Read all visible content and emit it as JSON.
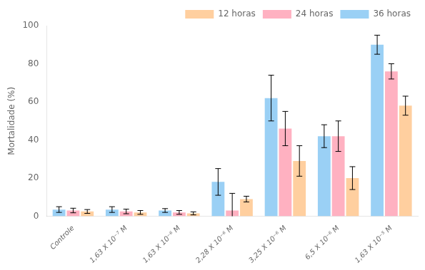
{
  "chart_data": {
    "type": "bar",
    "ylabel": "Mortalidade (%)",
    "categories": [
      "Controle",
      "1,63 X 10⁻⁷ M",
      "1,63 X 10⁻⁶ M",
      "2,28 X 10⁻⁶ M",
      "3,25 X 10⁻⁶ M",
      "6,5 X 10⁻⁶ M",
      "1,63 X 10⁻⁵ M"
    ],
    "series": [
      {
        "name": "36 horas",
        "values": [
          3.5,
          3.5,
          3.0,
          18.0,
          62.0,
          42.0,
          90.0
        ],
        "errors": [
          1.5,
          1.5,
          1.0,
          7.0,
          12.0,
          6.0,
          5.0
        ]
      },
      {
        "name": "24 horas",
        "values": [
          3.0,
          2.5,
          2.0,
          3.0,
          46.0,
          42.0,
          76.0
        ],
        "errors": [
          1.2,
          1.2,
          1.0,
          9.0,
          9.0,
          8.0,
          4.0
        ]
      },
      {
        "name": "12 horas",
        "values": [
          2.5,
          2.0,
          1.5,
          9.0,
          29.0,
          20.0,
          58.0
        ],
        "errors": [
          1.0,
          1.0,
          0.8,
          1.5,
          8.0,
          6.0,
          5.0
        ]
      }
    ],
    "ylim": [
      0,
      100
    ],
    "yticks": [
      0,
      20,
      40,
      60,
      80,
      100
    ],
    "grid": false,
    "legend": "upper right"
  }
}
